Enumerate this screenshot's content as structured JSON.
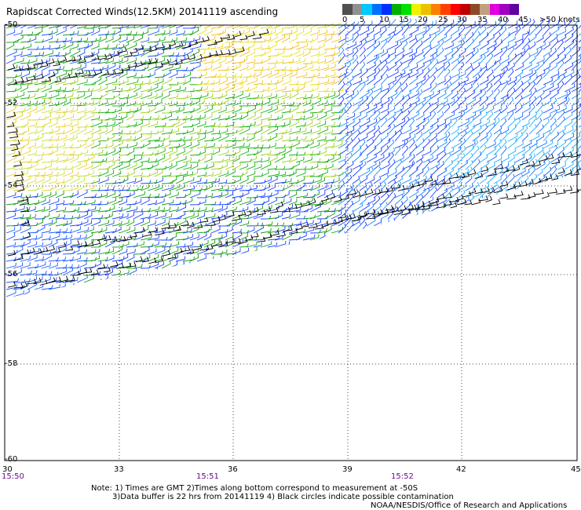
{
  "title": "Rapidscat Corrected Winds(12.5KM) 20141119 ascending",
  "speed_scale": {
    "labels": [
      "0",
      "5",
      "10",
      "15",
      "20",
      "25",
      "30",
      "35",
      "40",
      "45",
      ">50 knots"
    ],
    "colors": [
      "#505050",
      "#909090",
      "#00c8ff",
      "#0070ff",
      "#0030ff",
      "#00b000",
      "#00e000",
      "#f0f000",
      "#f0c000",
      "#ff8000",
      "#ff4000",
      "#ff0000",
      "#c00000",
      "#8a4a2a",
      "#c0a080",
      "#e000e0",
      "#a000c0",
      "#6000a0"
    ]
  },
  "axes": {
    "lat_labels": [
      "-50",
      "-52",
      "-54",
      "-56",
      "-58",
      "-60"
    ],
    "lon_labels": [
      "30",
      "33",
      "36",
      "39",
      "42",
      "45"
    ],
    "time_labels": [
      "15:50",
      "15:51",
      "15:52"
    ]
  },
  "notes": [
    "Note: 1) Times are GMT 2)Times along bottom correspond to measurement at -50S",
    "3)Data buffer is 22 hrs from 20141119 4) Black circles indicate possible contamination"
  ],
  "credit": "NOAA/NESDIS/Office of Research and Applications"
}
